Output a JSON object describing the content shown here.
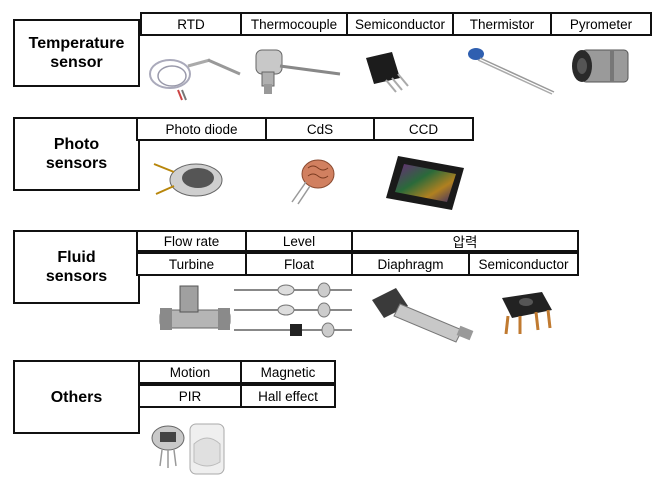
{
  "categories": {
    "temperature": {
      "label": "Temperature\nsensor",
      "items": [
        "RTD",
        "Thermocouple",
        "Semiconductor",
        "Thermistor",
        "Pyrometer"
      ]
    },
    "photo": {
      "label": "Photo\nsensors",
      "items": [
        "Photo diode",
        "CdS",
        "CCD"
      ]
    },
    "fluid": {
      "label": "Fluid\nsensors",
      "groups": [
        "Flow rate",
        "Level",
        "압력"
      ],
      "items": [
        "Turbine",
        "Float",
        "Diaphragm",
        "Semiconductor"
      ]
    },
    "others": {
      "label": "Others",
      "groups": [
        "Motion",
        "Magnetic"
      ],
      "items": [
        "PIR",
        "Hall effect"
      ]
    }
  }
}
